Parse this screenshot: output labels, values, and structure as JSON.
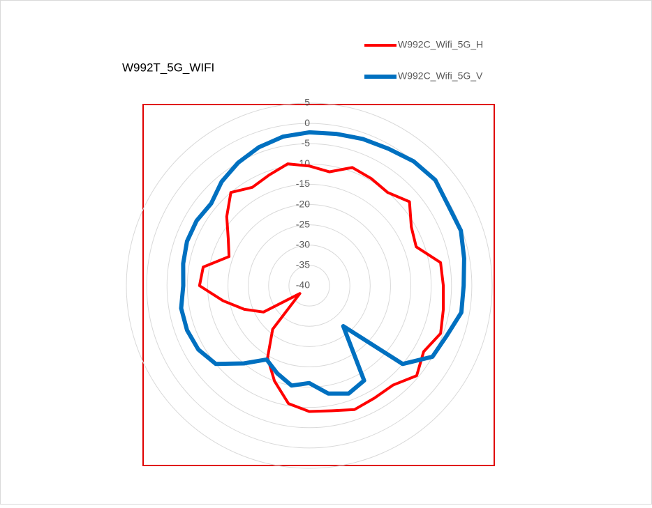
{
  "chart_data": {
    "type": "radar",
    "title": "W992T_5G_WIFI",
    "categories": [
      null,
      null,
      null,
      null,
      null,
      null,
      null,
      null,
      null,
      null,
      null,
      null,
      null,
      null,
      null,
      null,
      null,
      null,
      null,
      null,
      null,
      null,
      null,
      null,
      null,
      null,
      null,
      null,
      null,
      null,
      null,
      null,
      null,
      null,
      null,
      null
    ],
    "ylim": [
      -40,
      5
    ],
    "yticks": [
      -40,
      -35,
      -30,
      -25,
      -20,
      -15,
      -10,
      -5,
      0,
      5
    ],
    "grid": true,
    "legend": "top-right",
    "series": [
      {
        "name": "W992C_Wifi_5G_H",
        "color": "#ff0000",
        "values": [
          -10.5,
          -11.5,
          -9,
          -9.5,
          -10,
          -7.8,
          -11,
          -12,
          -7.2,
          -7,
          -6.5,
          -5.6,
          -7.5,
          -5.5,
          -8,
          -8,
          -7.5,
          -8.7,
          -9,
          -10.5,
          -15,
          -19.5,
          -26,
          -37,
          -27,
          -23,
          -18.5,
          -13,
          -13.5,
          -19,
          -17,
          -13.5,
          -10,
          -12,
          -11,
          -9.5
        ]
      },
      {
        "name": "W992C_Wifi_5G_V",
        "color": "#0070c0",
        "values": [
          -2.2,
          -2,
          -1.5,
          -1,
          0,
          0.5,
          -0.5,
          -0.3,
          -1.3,
          -2,
          -2,
          -4,
          -5,
          -10,
          -27,
          -13,
          -11.7,
          -13,
          -16,
          -15,
          -17,
          -19,
          -15,
          -10,
          -8.5,
          -8,
          -8,
          -9,
          -8.5,
          -8,
          -8,
          -8.5,
          -6.5,
          -5,
          -3.7,
          -2.7
        ]
      }
    ]
  }
}
